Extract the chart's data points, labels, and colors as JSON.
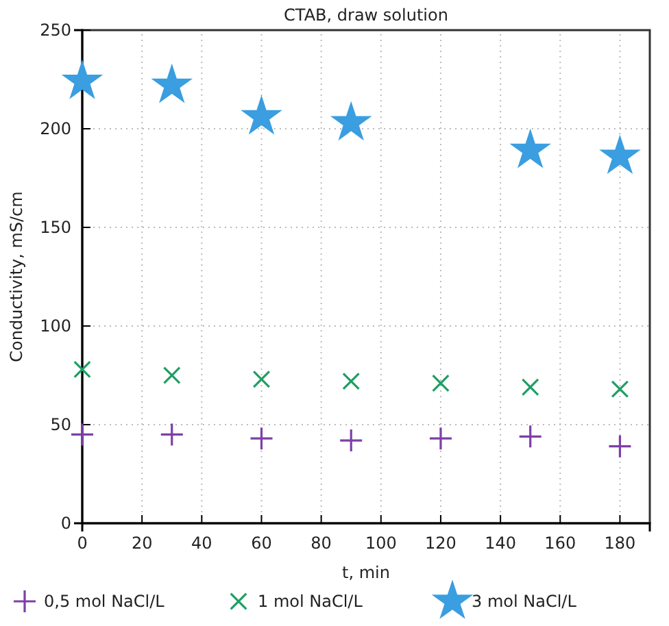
{
  "chart_data": {
    "type": "scatter",
    "title": "CTAB, draw solution",
    "xlabel": "t, min",
    "ylabel": "Conductivity, mS/cm",
    "xlim": [
      0,
      190
    ],
    "xticks": [
      0,
      20,
      40,
      60,
      80,
      100,
      120,
      140,
      160,
      180
    ],
    "ylim": [
      0,
      250
    ],
    "yticks": [
      0,
      50,
      100,
      150,
      200,
      250
    ],
    "grid": true,
    "legend": "bottom",
    "series": [
      {
        "name": "0,5 mol NaCl/L",
        "color": "#7e3fa8",
        "marker": "cross",
        "x": [
          0,
          30,
          60,
          90,
          120,
          150,
          180
        ],
        "values": [
          45,
          45,
          43,
          42,
          43,
          44,
          39
        ]
      },
      {
        "name": "1 mol NaCl/L",
        "color": "#1f9e63",
        "marker": "cross",
        "x": [
          0,
          30,
          60,
          90,
          120,
          150,
          180
        ],
        "values": [
          78,
          75,
          73,
          72,
          71,
          69,
          68
        ]
      },
      {
        "name": "3 mol NaCl/L",
        "color": "#3a9ee0",
        "marker": "star",
        "x": [
          0,
          30,
          60,
          90,
          150,
          180
        ],
        "values": [
          224,
          222,
          206,
          203,
          189,
          186
        ]
      }
    ]
  }
}
